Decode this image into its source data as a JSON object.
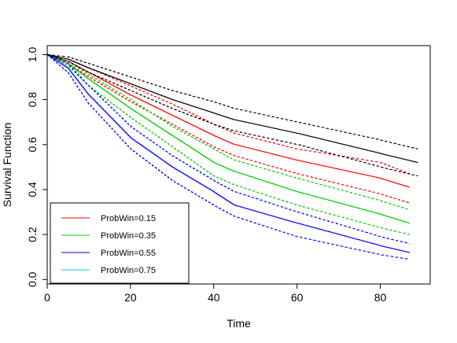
{
  "chart_data": {
    "type": "line",
    "title": "",
    "xlabel": "Time",
    "ylabel": "Survival Function",
    "xlim": [
      0,
      92
    ],
    "ylim": [
      -0.02,
      1.04
    ],
    "x_ticks": [
      0,
      20,
      40,
      60,
      80
    ],
    "x_tick_labels": [
      "0",
      "20",
      "40",
      "60",
      "80"
    ],
    "y_ticks": [
      0.0,
      0.2,
      0.4,
      0.6,
      0.8,
      1.0
    ],
    "y_tick_labels": [
      "0.0",
      "0.2",
      "0.4",
      "0.6",
      "0.8",
      "1.0"
    ],
    "grid": false,
    "legend_position": "bottom-left",
    "line_style": "step",
    "series": [
      {
        "name": "ProbWin=0.15",
        "color": "#ff0000",
        "x": [
          0,
          5,
          10,
          20,
          30,
          40,
          45,
          60,
          80,
          87
        ],
        "y": [
          1.0,
          0.97,
          0.92,
          0.82,
          0.73,
          0.64,
          0.6,
          0.53,
          0.45,
          0.41
        ],
        "lower": [
          1.0,
          0.96,
          0.9,
          0.79,
          0.69,
          0.59,
          0.55,
          0.47,
          0.38,
          0.34
        ],
        "upper": [
          1.0,
          0.98,
          0.94,
          0.86,
          0.78,
          0.69,
          0.65,
          0.58,
          0.52,
          0.47
        ]
      },
      {
        "name": "ProbWin=0.35",
        "color": "#00cc00",
        "x": [
          0,
          5,
          10,
          20,
          30,
          40,
          45,
          60,
          80,
          87
        ],
        "y": [
          1.0,
          0.96,
          0.89,
          0.76,
          0.64,
          0.52,
          0.48,
          0.39,
          0.29,
          0.25
        ],
        "lower": [
          1.0,
          0.95,
          0.86,
          0.72,
          0.59,
          0.46,
          0.42,
          0.33,
          0.23,
          0.2
        ],
        "upper": [
          1.0,
          0.97,
          0.91,
          0.8,
          0.68,
          0.58,
          0.53,
          0.45,
          0.35,
          0.31
        ]
      },
      {
        "name": "ProbWin=0.55",
        "color": "#0000ff",
        "x": [
          0,
          5,
          10,
          20,
          30,
          40,
          45,
          60,
          80,
          87
        ],
        "y": [
          1.0,
          0.94,
          0.82,
          0.63,
          0.5,
          0.39,
          0.33,
          0.25,
          0.15,
          0.12
        ],
        "lower": [
          1.0,
          0.92,
          0.78,
          0.58,
          0.44,
          0.33,
          0.28,
          0.19,
          0.11,
          0.09
        ],
        "upper": [
          1.0,
          0.96,
          0.86,
          0.68,
          0.55,
          0.44,
          0.39,
          0.3,
          0.19,
          0.16
        ]
      },
      {
        "name": "ProbWin=0.75",
        "color": "#00cccc",
        "x": [],
        "y": []
      },
      {
        "name": "",
        "color": "#000000",
        "x": [
          0,
          5,
          10,
          20,
          30,
          40,
          45,
          60,
          80,
          89
        ],
        "y": [
          1.0,
          0.98,
          0.94,
          0.87,
          0.8,
          0.74,
          0.71,
          0.65,
          0.56,
          0.52
        ],
        "lower": [
          1.0,
          0.97,
          0.92,
          0.84,
          0.76,
          0.69,
          0.66,
          0.6,
          0.5,
          0.46
        ],
        "upper": [
          1.0,
          0.99,
          0.96,
          0.9,
          0.84,
          0.79,
          0.76,
          0.7,
          0.62,
          0.58
        ]
      }
    ]
  }
}
